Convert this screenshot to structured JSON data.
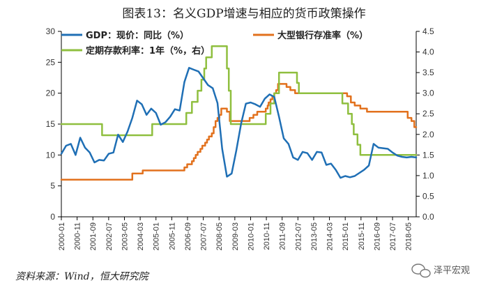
{
  "chart_data": {
    "type": "line",
    "title": "图表13：名义GDP增速与相应的货币政策操作",
    "source_note": "资料来源：Wind，恒大研究院",
    "watermark": "泽平宏观",
    "colors": {
      "gdp": "#1f6fb5",
      "loan_rate": "#e2711d",
      "deposit_rate": "#8fbf3f",
      "axis": "#000000"
    },
    "left_axis": {
      "ylim": [
        0,
        30
      ],
      "ticks": [
        "0",
        "5",
        "10",
        "15",
        "20",
        "25",
        "30"
      ]
    },
    "right_axis": {
      "ylim": [
        0,
        4.5
      ],
      "ticks": [
        "0.0",
        "0.5",
        "1.0",
        "1.5",
        "2.0",
        "2.5",
        "3.0",
        "3.5",
        "4.0",
        "4.5"
      ]
    },
    "x_axis": {
      "start": 2000.0,
      "end": 2018.75,
      "tick_labels": [
        "2000-01",
        "2000-11",
        "2001-09",
        "2002-07",
        "2003-05",
        "2004-03",
        "2005-01",
        "2005-11",
        "2006-09",
        "2007-07",
        "2008-05",
        "2009-03",
        "2010-01",
        "2010-11",
        "2011-09",
        "2012-07",
        "2013-05",
        "2014-03",
        "2015-01",
        "2015-11",
        "2016-09",
        "2017-07",
        "2018-05"
      ]
    },
    "legend": [
      {
        "key": "gdp",
        "label": "GDP：现价：同比（%）"
      },
      {
        "key": "loan_rate",
        "label": "大型银行存准率（%）"
      },
      {
        "key": "deposit_rate",
        "label": "定期存款利率：1年（%，右）"
      }
    ],
    "series": [
      {
        "name": "GDP：现价：同比（%）",
        "key": "gdp",
        "axis": "left",
        "step": false,
        "x": [
          2000.0,
          2000.25,
          2000.5,
          2000.75,
          2001.0,
          2001.25,
          2001.5,
          2001.75,
          2002.0,
          2002.25,
          2002.5,
          2002.75,
          2003.0,
          2003.25,
          2003.5,
          2003.75,
          2004.0,
          2004.25,
          2004.5,
          2004.75,
          2005.0,
          2005.25,
          2005.5,
          2005.75,
          2006.0,
          2006.25,
          2006.5,
          2006.75,
          2007.0,
          2007.25,
          2007.5,
          2007.75,
          2008.0,
          2008.25,
          2008.5,
          2008.75,
          2009.0,
          2009.25,
          2009.5,
          2009.75,
          2010.0,
          2010.25,
          2010.5,
          2010.75,
          2011.0,
          2011.25,
          2011.5,
          2011.75,
          2012.0,
          2012.25,
          2012.5,
          2012.75,
          2013.0,
          2013.25,
          2013.5,
          2013.75,
          2014.0,
          2014.25,
          2014.5,
          2014.75,
          2015.0,
          2015.25,
          2015.5,
          2015.75,
          2016.0,
          2016.25,
          2016.5,
          2016.75,
          2017.0,
          2017.25,
          2017.5,
          2017.75,
          2018.0,
          2018.25,
          2018.5,
          2018.75
        ],
        "values": [
          10.2,
          11.5,
          11.8,
          10.0,
          12.8,
          11.2,
          10.4,
          8.8,
          9.2,
          9.1,
          10.2,
          10.4,
          13.3,
          12.1,
          13.8,
          16.0,
          18.8,
          18.2,
          16.5,
          17.5,
          16.8,
          14.9,
          15.3,
          16.2,
          17.4,
          17.2,
          21.8,
          24.1,
          23.8,
          23.5,
          22.4,
          21.3,
          20.8,
          18.4,
          11.0,
          6.5,
          7.0,
          10.8,
          15.1,
          18.3,
          18.5,
          18.2,
          17.8,
          19.1,
          19.8,
          19.4,
          16.2,
          12.7,
          11.8,
          9.6,
          9.2,
          10.5,
          10.3,
          9.2,
          10.5,
          10.4,
          8.4,
          8.6,
          7.6,
          6.3,
          6.6,
          6.4,
          6.6,
          7.1,
          7.6,
          8.3,
          11.8,
          11.2,
          11.1,
          11.0,
          10.4,
          9.9,
          9.7,
          9.6,
          9.7,
          9.6
        ]
      },
      {
        "name": "大型银行存准率（%）",
        "key": "loan_rate",
        "axis": "left",
        "step": true,
        "x": [
          2000.0,
          2003.75,
          2004.3,
          2006.5,
          2006.65,
          2006.9,
          2007.0,
          2007.1,
          2007.2,
          2007.35,
          2007.45,
          2007.6,
          2007.7,
          2007.8,
          2007.95,
          2008.05,
          2008.15,
          2008.25,
          2008.35,
          2008.45,
          2008.75,
          2008.9,
          2009.95,
          2010.15,
          2010.35,
          2010.8,
          2010.9,
          2010.95,
          2011.05,
          2011.15,
          2011.25,
          2011.35,
          2011.45,
          2011.9,
          2012.1,
          2012.35,
          2015.1,
          2015.3,
          2015.5,
          2015.8,
          2016.15,
          2018.3,
          2018.5,
          2018.65
        ],
        "values": [
          6.0,
          7.0,
          7.5,
          8.0,
          8.5,
          9.0,
          9.5,
          10.0,
          10.5,
          11.0,
          11.5,
          12.0,
          12.5,
          13.0,
          13.5,
          14.5,
          15.5,
          16.0,
          16.5,
          17.5,
          17.0,
          15.5,
          16.0,
          16.5,
          17.0,
          17.5,
          18.0,
          18.5,
          19.0,
          19.5,
          20.0,
          20.5,
          21.5,
          21.0,
          20.5,
          20.0,
          19.5,
          18.5,
          18.0,
          17.5,
          17.0,
          16.0,
          15.5,
          14.5
        ]
      },
      {
        "name": "定期存款利率：1年（%，右）",
        "key": "deposit_rate",
        "axis": "right",
        "step": true,
        "x": [
          2000.0,
          2002.15,
          2004.8,
          2006.6,
          2006.9,
          2007.2,
          2007.4,
          2007.55,
          2007.65,
          2007.95,
          2008.75,
          2008.85,
          2008.95,
          2010.8,
          2011.05,
          2011.25,
          2011.5,
          2012.45,
          2012.55,
          2014.85,
          2015.15,
          2015.35,
          2015.45,
          2015.65,
          2015.8,
          2018.75
        ],
        "values": [
          2.25,
          1.98,
          2.25,
          2.52,
          2.79,
          3.06,
          3.33,
          3.6,
          3.87,
          4.14,
          3.6,
          3.06,
          2.25,
          2.5,
          2.75,
          3.0,
          3.5,
          3.25,
          3.0,
          2.75,
          2.5,
          2.25,
          2.0,
          1.75,
          1.5,
          1.5
        ]
      }
    ]
  }
}
